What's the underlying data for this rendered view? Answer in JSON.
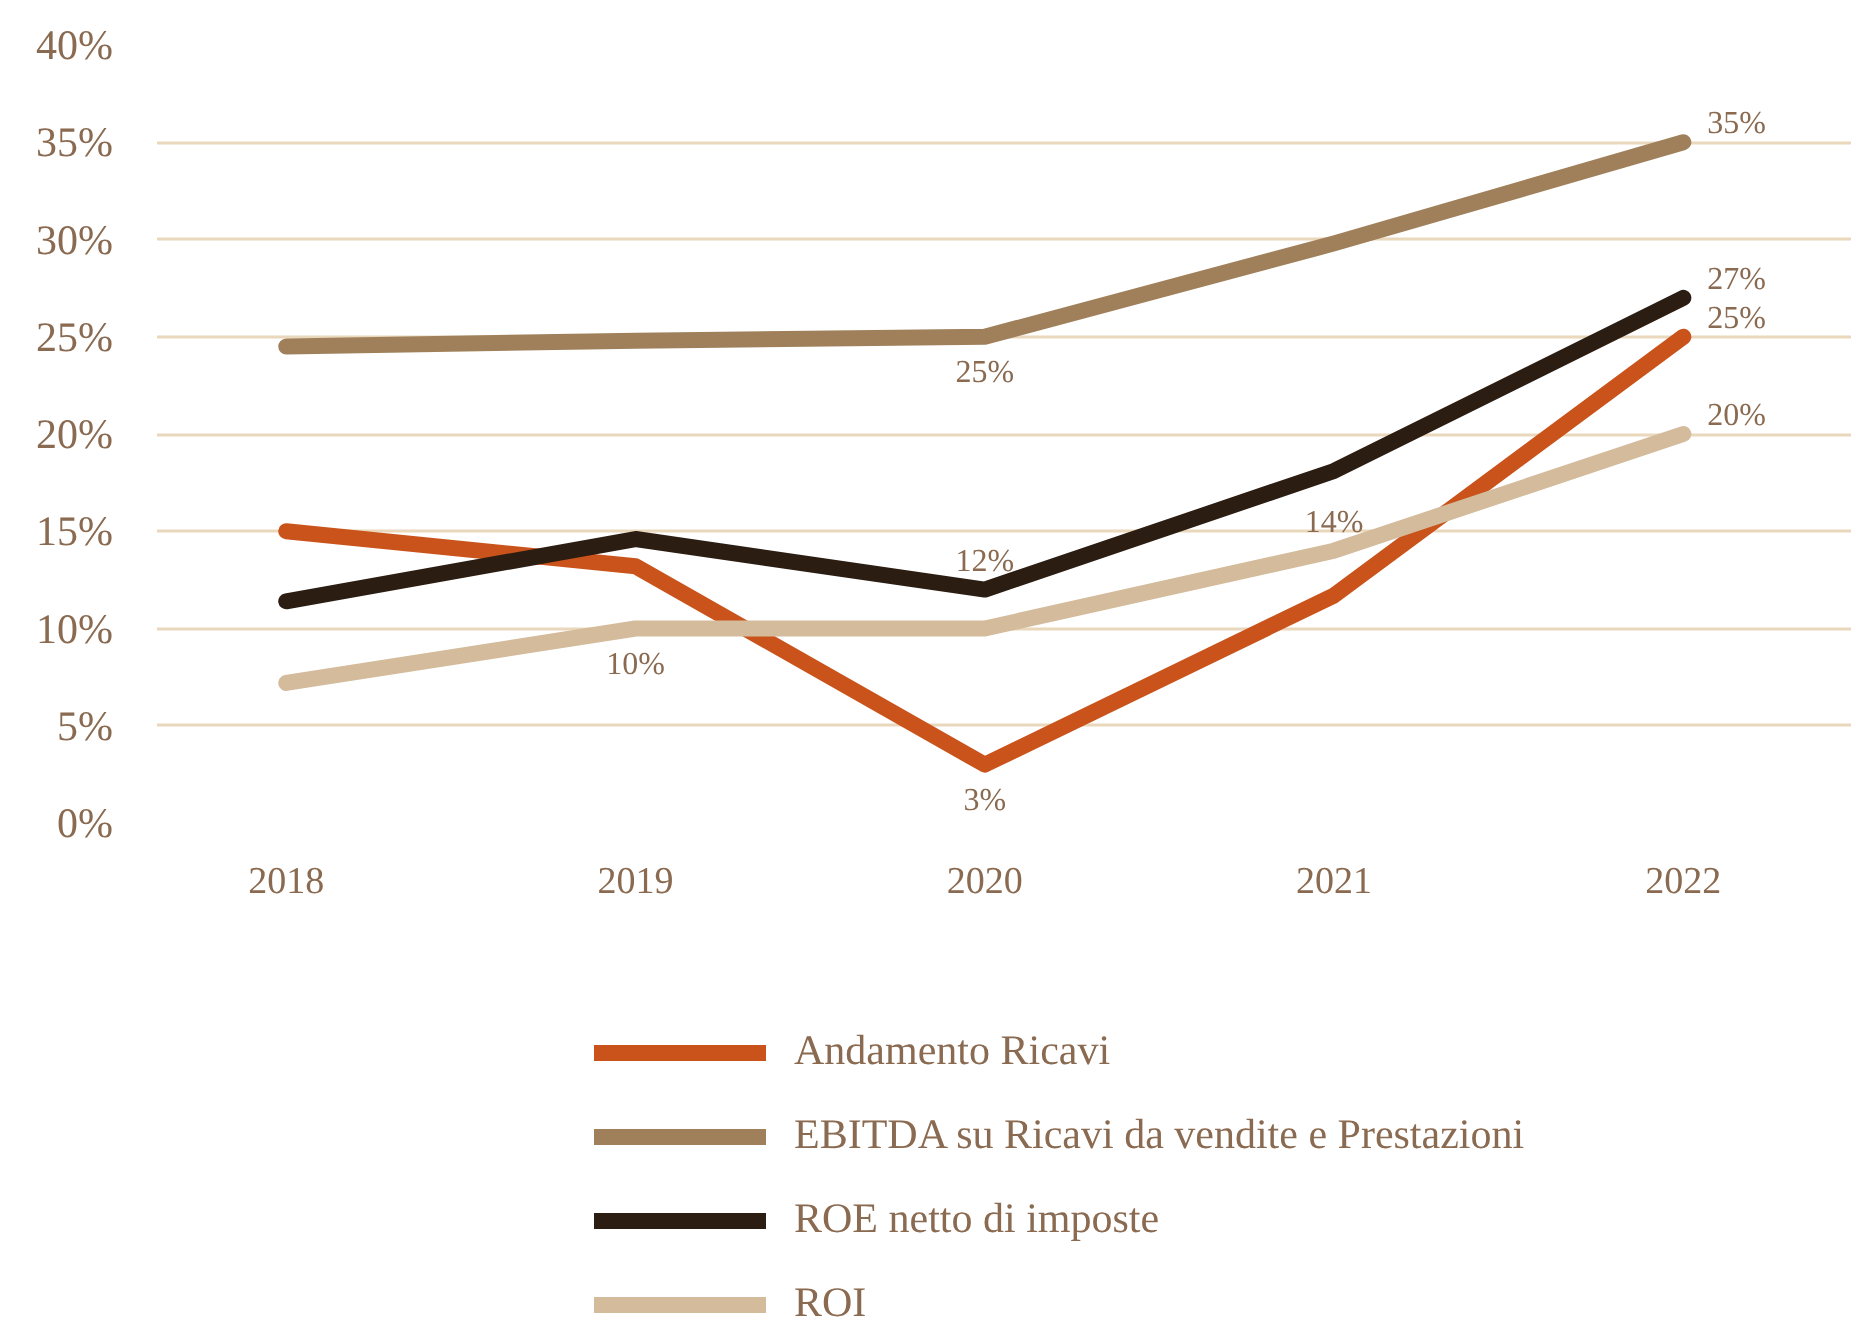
{
  "chart_data": {
    "type": "line",
    "categories": [
      "2018",
      "2019",
      "2020",
      "2021",
      "2022"
    ],
    "ylim": [
      0,
      40
    ],
    "yticks": [
      {
        "value": 0,
        "label": "0%"
      },
      {
        "value": 5,
        "label": "5%"
      },
      {
        "value": 10,
        "label": "10%"
      },
      {
        "value": 15,
        "label": "15%"
      },
      {
        "value": 20,
        "label": "20%"
      },
      {
        "value": 25,
        "label": "25%"
      },
      {
        "value": 30,
        "label": "30%"
      },
      {
        "value": 35,
        "label": "35%"
      },
      {
        "value": 40,
        "label": "40%"
      }
    ],
    "grid": "y",
    "legend": "bottom",
    "series": [
      {
        "name": "Andamento Ricavi",
        "color": "#c9531b",
        "values": [
          15,
          13.2,
          3,
          11.7,
          25
        ],
        "value_labels": [
          null,
          null,
          "3%",
          null,
          "25%"
        ]
      },
      {
        "name": "EBITDA su Ricavi da vendite e Prestazioni",
        "color": "#a0805a",
        "values": [
          24.5,
          24.8,
          25,
          29.8,
          35
        ],
        "value_labels": [
          null,
          null,
          "25%",
          null,
          "35%"
        ]
      },
      {
        "name": "ROE netto di imposte",
        "color": "#2b1d12",
        "values": [
          11.4,
          14.6,
          12,
          18.1,
          27
        ],
        "value_labels": [
          null,
          null,
          "12%",
          null,
          "27%"
        ]
      },
      {
        "name": "ROI",
        "color": "#d3bb9b",
        "values": [
          7.2,
          10,
          10,
          14,
          20
        ],
        "value_labels": [
          null,
          "10%",
          null,
          "14%",
          "20%"
        ]
      }
    ]
  }
}
